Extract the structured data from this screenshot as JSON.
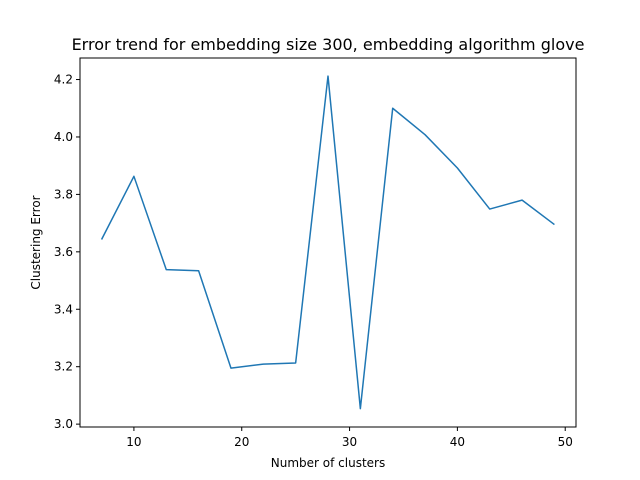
{
  "chart_data": {
    "type": "line",
    "title": "Error trend for embedding size 300, embedding algorithm glove",
    "xlabel": "Number of clusters",
    "ylabel": "Clustering Error",
    "xlim": [
      5,
      51
    ],
    "ylim": [
      2.99,
      4.275
    ],
    "xticks": [
      10,
      20,
      30,
      40,
      50
    ],
    "yticks": [
      3.0,
      3.2,
      3.4,
      3.6,
      3.8,
      4.0,
      4.2
    ],
    "ytick_labels": [
      "3.0",
      "3.2",
      "3.4",
      "3.6",
      "3.8",
      "4.0",
      "4.2"
    ],
    "grid": false,
    "series": [
      {
        "color": "#1f77b4",
        "x": [
          7,
          10,
          13,
          16,
          19,
          22,
          25,
          28,
          31,
          34,
          37,
          40,
          43,
          46,
          49
        ],
        "y": [
          3.643,
          3.863,
          3.538,
          3.534,
          3.195,
          3.209,
          3.213,
          4.212,
          3.054,
          4.1,
          4.008,
          3.892,
          3.749,
          3.78,
          3.695
        ]
      }
    ]
  }
}
